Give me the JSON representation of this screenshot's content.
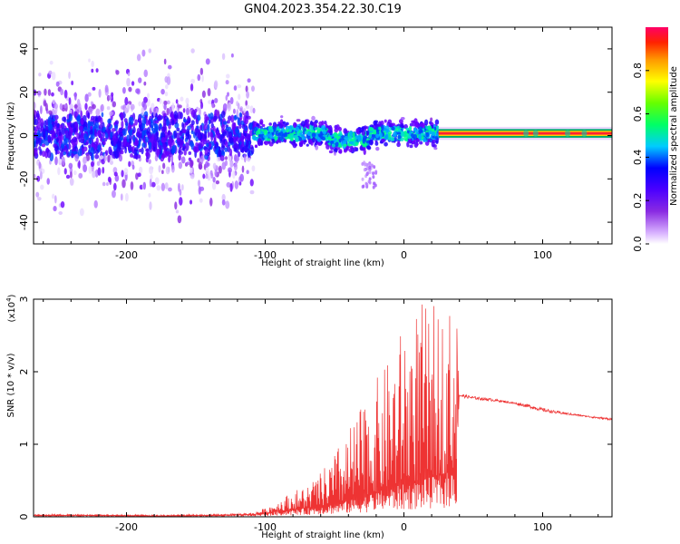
{
  "title": "GN04.2023.354.22.30.C19",
  "chart_data": [
    {
      "type": "heatmap",
      "xlabel": "Height of straight line (km)",
      "ylabel": "Frequency (Hz)",
      "xlim": [
        -267,
        150
      ],
      "ylim": [
        -50,
        50
      ],
      "xticks": [
        -200,
        -100,
        0,
        100
      ],
      "yticks": [
        -40,
        -20,
        0,
        20,
        40
      ],
      "colorbar": {
        "label": "Normalized spectral amplitude",
        "range": [
          0,
          1
        ],
        "ticks": [
          0.0,
          0.2,
          0.4,
          0.6,
          0.8
        ],
        "ticklabels": [
          "0.0",
          "0.2",
          "0.4",
          "0.6",
          "0.8"
        ]
      },
      "regions": [
        {
          "x": [
            -267,
            -108
          ],
          "freq_spread": 50,
          "amplitude": "low, scattered (0.0-0.3)"
        },
        {
          "x": [
            -108,
            25
          ],
          "freq_spread": 12,
          "amplitude": "medium (0.2-0.5)"
        },
        {
          "x": [
            25,
            150
          ],
          "freq_center": 1,
          "freq_spread": 2,
          "amplitude": "high (0.8-1.0)"
        }
      ]
    },
    {
      "type": "line",
      "xlabel": "Height of straight line (km)",
      "ylabel": "SNR (10 * v/v)",
      "yscale_label": "(x10",
      "yscale_exp": "4",
      "yscale_close": ")",
      "xlim": [
        -267,
        150
      ],
      "ylim": [
        0,
        3
      ],
      "xticks": [
        -200,
        -100,
        0,
        100
      ],
      "yticks": [
        0,
        1,
        2,
        3
      ],
      "color": "#ee3333",
      "series": [
        {
          "x": [
            -267,
            -220,
            -180,
            -140,
            -110,
            -100,
            -90,
            -80,
            -70,
            -60,
            -50,
            -40,
            -30,
            -20,
            -10,
            0,
            10,
            20,
            30,
            38,
            40,
            50,
            60,
            70,
            80,
            90,
            100,
            110,
            120,
            130,
            140,
            150
          ],
          "y_base": [
            0.02,
            0.02,
            0.01,
            0.02,
            0.03,
            0.05,
            0.08,
            0.1,
            0.12,
            0.15,
            0.18,
            0.22,
            0.28,
            0.35,
            0.4,
            0.45,
            0.5,
            0.55,
            0.6,
            0.7,
            1.65,
            1.62,
            1.6,
            1.58,
            1.55,
            1.5,
            1.45,
            1.42,
            1.4,
            1.38,
            1.35,
            1.33
          ],
          "y_peak": [
            0.04,
            0.03,
            0.03,
            0.03,
            0.06,
            0.12,
            0.25,
            0.35,
            0.45,
            0.6,
            0.9,
            1.2,
            1.55,
            1.9,
            2.2,
            2.7,
            3.0,
            2.9,
            2.95,
            2.85,
            1.7,
            1.66,
            1.64,
            1.61,
            1.58,
            1.55,
            1.5,
            1.46,
            1.43,
            1.4,
            1.38,
            1.36
          ]
        }
      ]
    }
  ]
}
